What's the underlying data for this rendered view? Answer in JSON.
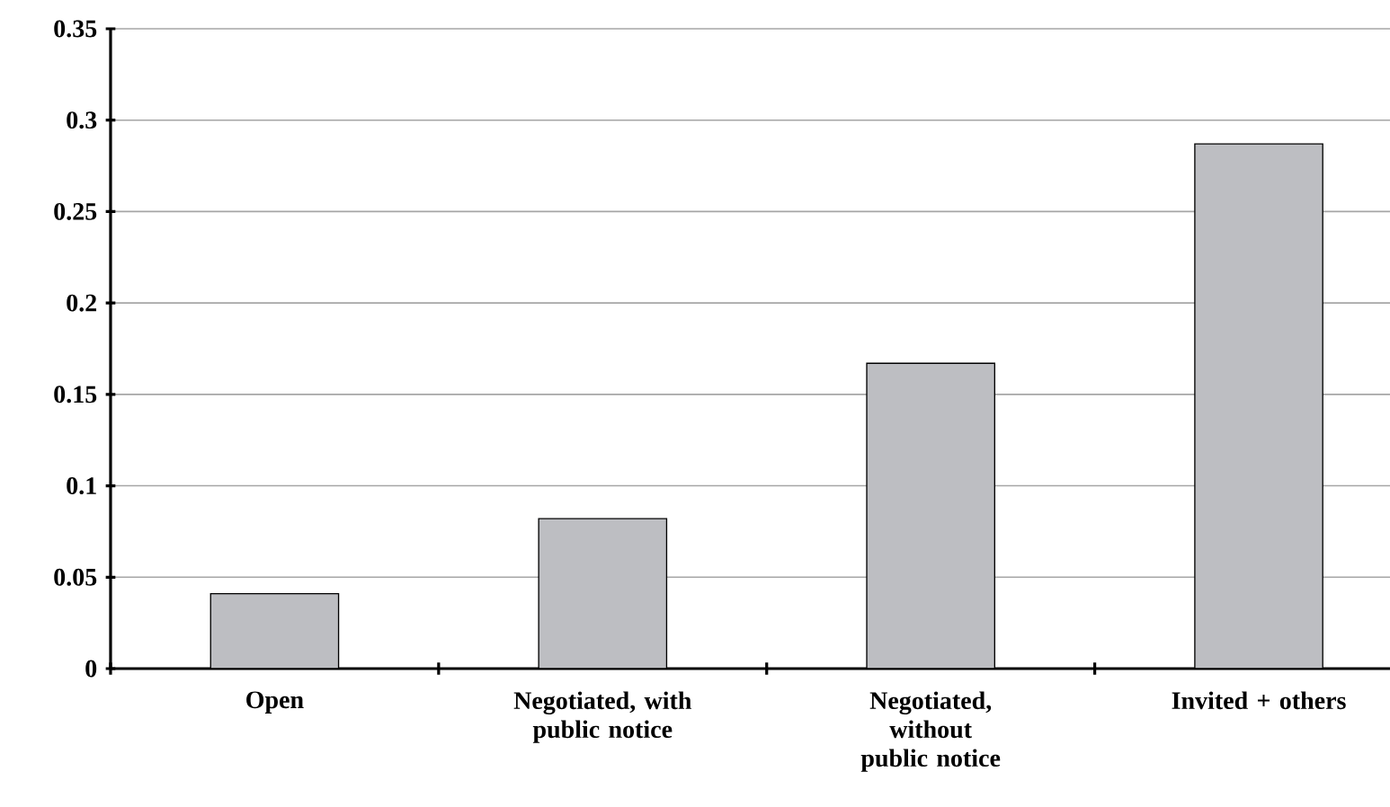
{
  "chart_data": {
    "type": "bar",
    "categories": [
      "Open",
      "Negotiated, with public notice",
      "Negotiated, without public notice",
      "Invited + others"
    ],
    "values": [
      0.041,
      0.082,
      0.167,
      0.287
    ],
    "color": "#bdbec2",
    "ylim": [
      0,
      0.35
    ],
    "yticks": [
      0,
      0.05,
      0.1,
      0.15,
      0.2,
      0.25,
      0.3,
      0.35
    ],
    "grid": "y"
  }
}
